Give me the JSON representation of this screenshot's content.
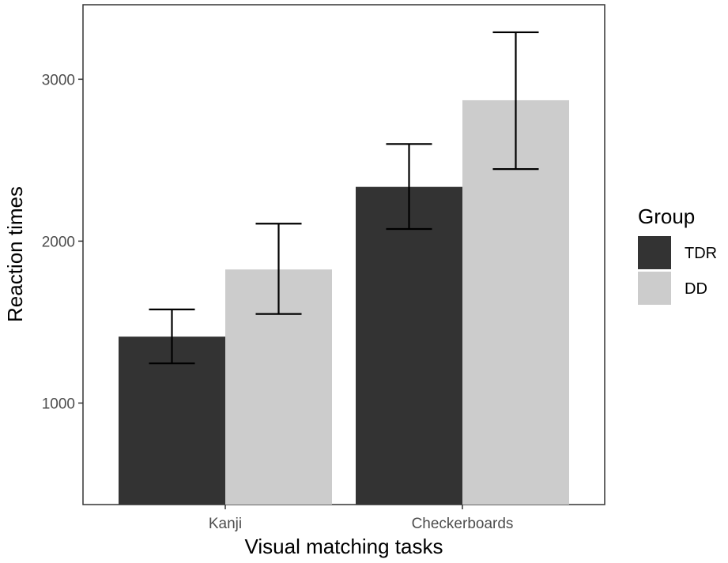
{
  "chart_data": {
    "type": "bar",
    "xlabel": "Visual matching tasks",
    "ylabel": "Reaction times",
    "categories": [
      "Kanji",
      "Checkerboards"
    ],
    "series": [
      {
        "name": "TDR",
        "values": [
          1410,
          2335
        ],
        "error_low": [
          1245,
          2075
        ],
        "error_high": [
          1578,
          2600
        ],
        "color": "#333333"
      },
      {
        "name": "DD",
        "values": [
          1825,
          2870
        ],
        "error_low": [
          1550,
          2445
        ],
        "error_high": [
          2108,
          3290
        ],
        "color": "#cccccc"
      }
    ],
    "yticks": [
      1000,
      2000,
      3000
    ],
    "ylim": [
      373,
      3460
    ],
    "grid": false,
    "legend": {
      "title": "Group",
      "position": "right"
    }
  }
}
